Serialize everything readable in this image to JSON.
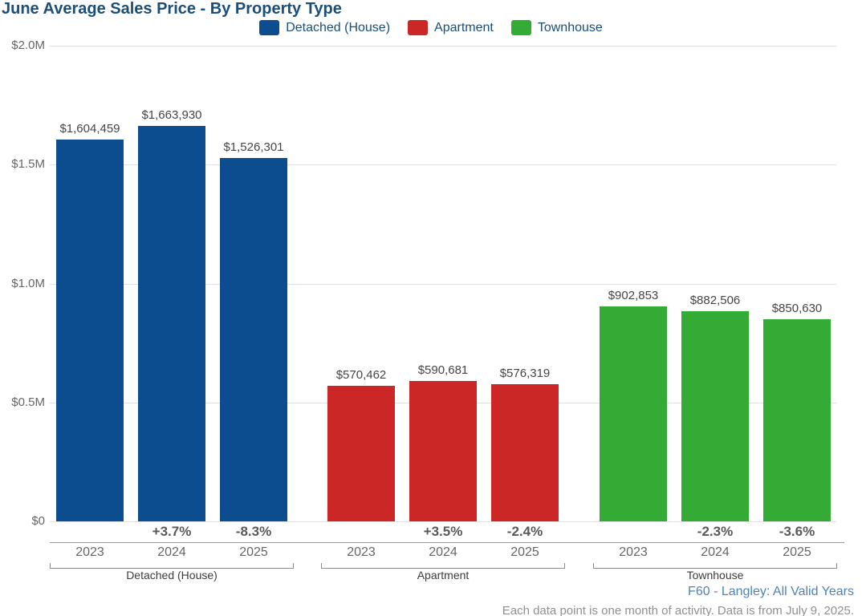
{
  "title": "June Average Sales Price - By Property Type",
  "legend": [
    {
      "label": "Detached (House)",
      "color": "#0b4d8e"
    },
    {
      "label": "Apartment",
      "color": "#cb2727"
    },
    {
      "label": "Townhouse",
      "color": "#33ab34"
    }
  ],
  "chart_data": {
    "type": "bar",
    "title": "June Average Sales Price - By Property Type",
    "xlabel": "",
    "ylabel": "",
    "ylim": [
      0,
      2000000
    ],
    "grid": true,
    "legend_position": "top-center",
    "ytick_values": [
      0,
      500000,
      1000000,
      1500000,
      2000000
    ],
    "ytick_labels": [
      "$0",
      "$0.5M",
      "$1.0M",
      "$1.5M",
      "$2.0M"
    ],
    "categories": [
      "2023",
      "2024",
      "2025"
    ],
    "series": [
      {
        "name": "Detached (House)",
        "color": "#0b4d8e",
        "values": [
          1604459,
          1663930,
          1526301
        ],
        "value_labels": [
          "$1,604,459",
          "$1,663,930",
          "$1,526,301"
        ],
        "pct_change": [
          "",
          "+3.7%",
          "-8.3%"
        ]
      },
      {
        "name": "Apartment",
        "color": "#cb2727",
        "values": [
          570462,
          590681,
          576319
        ],
        "value_labels": [
          "$570,462",
          "$590,681",
          "$576,319"
        ],
        "pct_change": [
          "",
          "+3.5%",
          "-2.4%"
        ]
      },
      {
        "name": "Townhouse",
        "color": "#33ab34",
        "values": [
          902853,
          882506,
          850630
        ],
        "value_labels": [
          "$902,853",
          "$882,506",
          "$850,630"
        ],
        "pct_change": [
          "",
          "-2.3%",
          "-3.6%"
        ]
      }
    ]
  },
  "footer": {
    "source": "F60 - Langley: All Valid Years",
    "note": "Each data point is one month of activity. Data is from July 9, 2025."
  }
}
